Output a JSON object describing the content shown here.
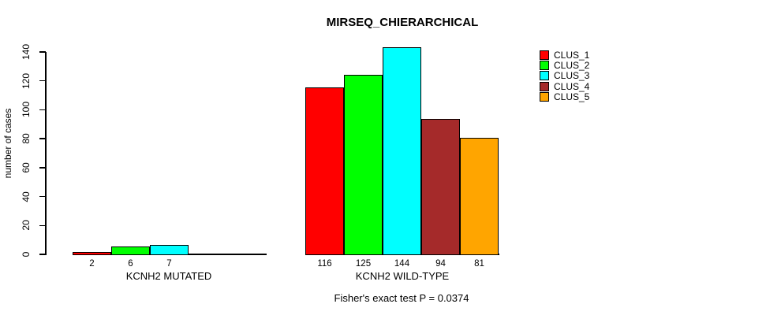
{
  "chart_data": {
    "type": "bar",
    "title": "MIRSEQ_CHIERARCHICAL",
    "ylabel": "number of cases",
    "ylim": [
      0,
      140
    ],
    "yticks": [
      0,
      20,
      40,
      60,
      80,
      100,
      120,
      140
    ],
    "grid": false,
    "legend_position": "right",
    "series": [
      {
        "name": "CLUS_1",
        "color": "#FF0000",
        "values": [
          2,
          116
        ]
      },
      {
        "name": "CLUS_2",
        "color": "#00FF00",
        "values": [
          6,
          125
        ]
      },
      {
        "name": "CLUS_3",
        "color": "#00FFFF",
        "values": [
          7,
          144
        ]
      },
      {
        "name": "CLUS_4",
        "color": "#A52A2A",
        "values": [
          0,
          94
        ]
      },
      {
        "name": "CLUS_5",
        "color": "#FFA500",
        "values": [
          0,
          81
        ]
      }
    ],
    "groups": [
      {
        "label": "KCNH2 MUTATED",
        "values": [
          2,
          6,
          7,
          0,
          0
        ]
      },
      {
        "label": "KCNH2 WILD-TYPE",
        "values": [
          116,
          125,
          144,
          94,
          81
        ]
      }
    ],
    "bar_value_labels": {
      "group1": [
        "2",
        "6",
        "7"
      ],
      "group2": [
        "116",
        "125",
        "144",
        "94",
        "81"
      ]
    },
    "annotation": "Fisher's exact test P = 0.0374"
  }
}
